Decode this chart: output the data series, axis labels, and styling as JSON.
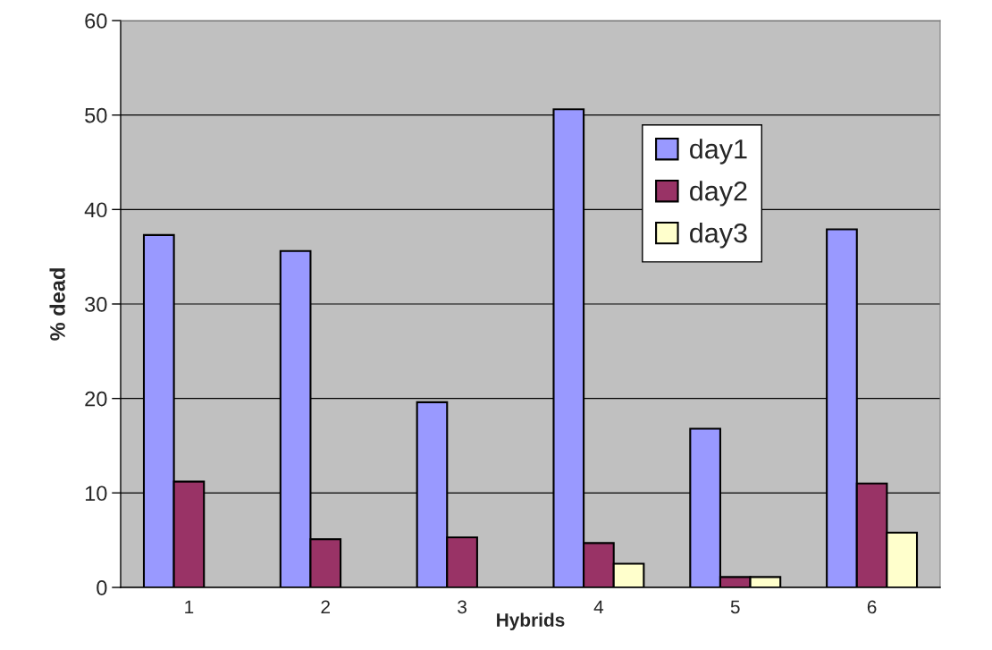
{
  "chart_data": {
    "type": "bar",
    "xlabel": "Hybrids",
    "ylabel": "% dead",
    "categories": [
      "1",
      "2",
      "3",
      "4",
      "5",
      "6"
    ],
    "series": [
      {
        "name": "day1",
        "color": "#9999ff",
        "values": [
          37.3,
          35.6,
          19.6,
          50.6,
          16.8,
          37.9
        ]
      },
      {
        "name": "day2",
        "color": "#993366",
        "values": [
          11.2,
          5.1,
          5.3,
          4.7,
          1.1,
          11.0
        ]
      },
      {
        "name": "day3",
        "color": "#ffffcc",
        "values": [
          null,
          null,
          null,
          2.5,
          1.1,
          5.8
        ]
      }
    ],
    "ylim": [
      0,
      60
    ],
    "yticks": [
      0,
      10,
      20,
      30,
      40,
      50,
      60
    ],
    "grid": "y",
    "legend": "top right"
  }
}
